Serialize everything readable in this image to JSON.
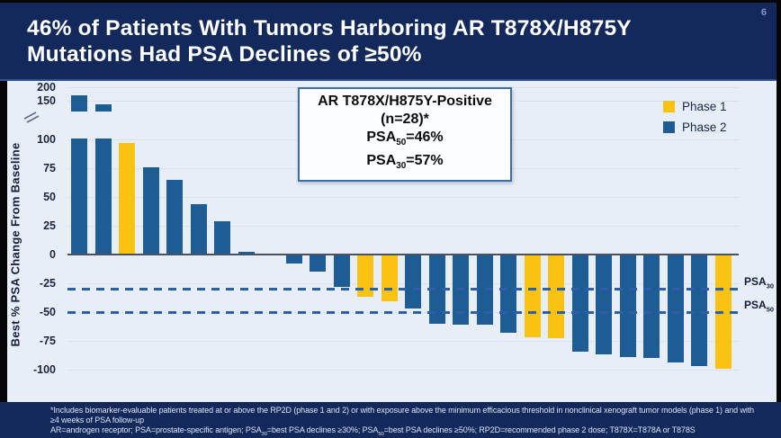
{
  "slide": {
    "title_lines": [
      "46% of Patients With Tumors Harboring AR T878X/H875Y",
      "Mutations Had PSA Declines of ≥50%"
    ],
    "page_number": "6"
  },
  "chart_data": {
    "type": "bar",
    "subtype": "waterfall",
    "title": "",
    "xlabel": "",
    "ylabel": "Best % PSA Change From Baseline",
    "ylim": [
      -100,
      200
    ],
    "y_ticks": [
      200,
      150,
      100,
      75,
      50,
      25,
      0,
      -25,
      -50,
      -75,
      -100
    ],
    "axis_break_between": [
      100,
      150
    ],
    "grid": true,
    "legend": {
      "position": "top-right",
      "entries": [
        {
          "label": "Phase 1",
          "color": "#FBC311"
        },
        {
          "label": "Phase 2",
          "color": "#1E5C96"
        }
      ]
    },
    "reference_lines": [
      {
        "value": -30,
        "label": "PSA~30~"
      },
      {
        "value": -50,
        "label": "PSA~50~"
      }
    ],
    "annotation_box": {
      "lines": [
        "AR T878X/H875Y-Positive",
        "(n=28)*",
        "PSA~50~=46%",
        "PSA~30~=57%"
      ]
    },
    "bars": [
      {
        "value": 170,
        "phase": "Phase 2"
      },
      {
        "value": 145,
        "phase": "Phase 2"
      },
      {
        "value": 97,
        "phase": "Phase 1"
      },
      {
        "value": 76,
        "phase": "Phase 2"
      },
      {
        "value": 65,
        "phase": "Phase 2"
      },
      {
        "value": 44,
        "phase": "Phase 2"
      },
      {
        "value": 29,
        "phase": "Phase 2"
      },
      {
        "value": 1,
        "phase": "Phase 2"
      },
      {
        "value": 0,
        "phase": "Phase 2"
      },
      {
        "value": -8,
        "phase": "Phase 2"
      },
      {
        "value": -15,
        "phase": "Phase 2"
      },
      {
        "value": -28,
        "phase": "Phase 2"
      },
      {
        "value": -37,
        "phase": "Phase 1"
      },
      {
        "value": -41,
        "phase": "Phase 1"
      },
      {
        "value": -47,
        "phase": "Phase 2"
      },
      {
        "value": -60,
        "phase": "Phase 2"
      },
      {
        "value": -61,
        "phase": "Phase 2"
      },
      {
        "value": -61,
        "phase": "Phase 2"
      },
      {
        "value": -68,
        "phase": "Phase 2"
      },
      {
        "value": -72,
        "phase": "Phase 1"
      },
      {
        "value": -73,
        "phase": "Phase 1"
      },
      {
        "value": -84,
        "phase": "Phase 2"
      },
      {
        "value": -87,
        "phase": "Phase 2"
      },
      {
        "value": -89,
        "phase": "Phase 2"
      },
      {
        "value": -90,
        "phase": "Phase 2"
      },
      {
        "value": -94,
        "phase": "Phase 2"
      },
      {
        "value": -97,
        "phase": "Phase 2"
      },
      {
        "value": -99,
        "phase": "Phase 1"
      }
    ]
  },
  "footnotes": [
    "*Includes biomarker-evaluable patients treated at or above the RP2D (phase 1 and 2) or with exposure above the minimum efficacious threshold in nonclinical xenograft tumor models (phase 1) and with",
    "≥4 weeks of PSA follow-up",
    "AR=androgen receptor; PSA=prostate-specific antigen; PSA~30~=best PSA declines ≥30%; PSA~50~=best PSA declines ≥50%; RP2D=recommended phase 2 dose; T878X=T878A or T878S"
  ]
}
